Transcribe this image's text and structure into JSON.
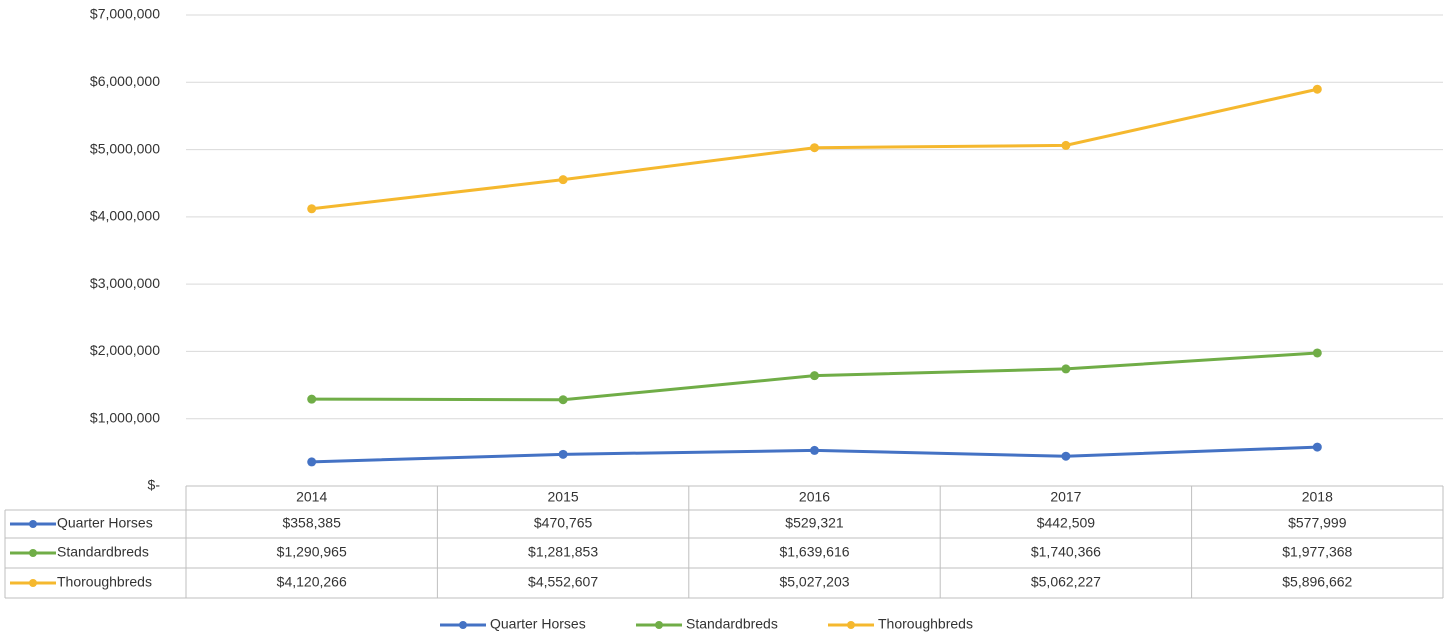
{
  "chart_data": {
    "type": "line",
    "categories": [
      "2014",
      "2015",
      "2016",
      "2017",
      "2018"
    ],
    "series": [
      {
        "name": "Quarter Horses",
        "color": "#4472c4",
        "values": [
          358385,
          470765,
          529321,
          442509,
          577999
        ],
        "value_labels": [
          "$358,385",
          "$470,765",
          "$529,321",
          "$442,509",
          "$577,999"
        ]
      },
      {
        "name": "Standardbreds",
        "color": "#70ad47",
        "values": [
          1290965,
          1281853,
          1639616,
          1740366,
          1977368
        ],
        "value_labels": [
          "$1,290,965",
          "$1,281,853",
          "$1,639,616",
          "$1,740,366",
          "$1,977,368"
        ]
      },
      {
        "name": "Thoroughbreds",
        "color": "#f5b82e",
        "values": [
          4120266,
          4552607,
          5027203,
          5062227,
          5896662
        ],
        "value_labels": [
          "$4,120,266",
          "$4,552,607",
          "$5,027,203",
          "$5,062,227",
          "$5,896,662"
        ]
      }
    ],
    "ylim": [
      0,
      7000000
    ],
    "yticks": [
      {
        "value": 0,
        "label": "$-"
      },
      {
        "value": 1000000,
        "label": "$1,000,000"
      },
      {
        "value": 2000000,
        "label": "$2,000,000"
      },
      {
        "value": 3000000,
        "label": "$3,000,000"
      },
      {
        "value": 4000000,
        "label": "$4,000,000"
      },
      {
        "value": 5000000,
        "label": "$5,000,000"
      },
      {
        "value": 6000000,
        "label": "$6,000,000"
      },
      {
        "value": 7000000,
        "label": "$7,000,000"
      }
    ],
    "grid": true,
    "legend": "bottom",
    "data_table": true
  }
}
